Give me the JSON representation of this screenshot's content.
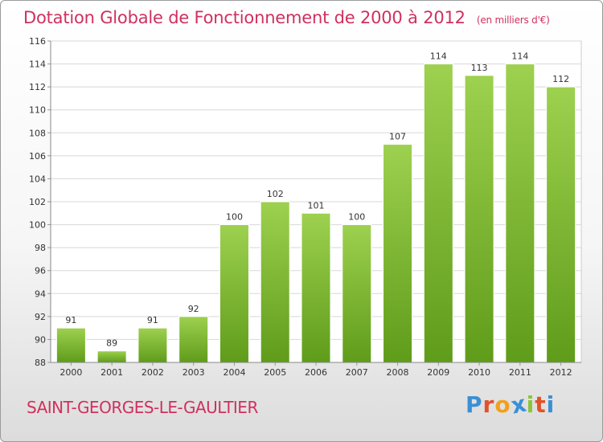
{
  "header": {
    "title": "Dotation Globale de Fonctionnement de 2000 à 2012",
    "subtitle": "(en milliers d'€)"
  },
  "footer": {
    "commune": "SAINT-GEORGES-LE-GAULTIER",
    "logo_letters": [
      "P",
      "r",
      "o",
      "x",
      "i",
      "t",
      "i"
    ],
    "logo_colors": [
      "#3a8fd6",
      "#e0532a",
      "#f2a01c",
      "#3a8fd6",
      "#8cc43a",
      "#e0532a",
      "#3a8fd6"
    ]
  },
  "chart_data": {
    "type": "bar",
    "title": "Dotation Globale de Fonctionnement de 2000 à 2012",
    "subtitle": "(en milliers d'€)",
    "categories": [
      "2000",
      "2001",
      "2002",
      "2003",
      "2004",
      "2005",
      "2006",
      "2007",
      "2008",
      "2009",
      "2010",
      "2011",
      "2012"
    ],
    "values": [
      91,
      89,
      91,
      92,
      100,
      102,
      101,
      100,
      107,
      114,
      113,
      114,
      112
    ],
    "ylim": [
      88,
      116
    ],
    "yticks": [
      88,
      90,
      92,
      94,
      96,
      98,
      100,
      102,
      104,
      106,
      108,
      110,
      112,
      114,
      116
    ],
    "grid": true,
    "colors": {
      "bar_top": "#9dd14f",
      "bar_bottom": "#5f9c1a",
      "grid": "#d8d8d8"
    }
  }
}
